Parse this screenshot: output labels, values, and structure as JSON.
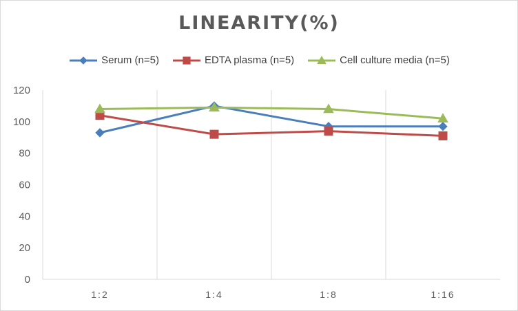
{
  "chart_data": {
    "type": "line",
    "title": "LINEARITY(%)",
    "categories": [
      "1:2",
      "1:4",
      "1:8",
      "1:16"
    ],
    "ylim": [
      0,
      120
    ],
    "yticks": [
      0,
      20,
      40,
      60,
      80,
      100,
      120
    ],
    "grid": "vertical",
    "legend_position": "top",
    "series": [
      {
        "name": "Serum (n=5)",
        "values": [
          93,
          110,
          97,
          97
        ],
        "color": "#4a7ebb",
        "marker": "diamond"
      },
      {
        "name": "EDTA plasma (n=5)",
        "values": [
          104,
          92,
          94,
          91
        ],
        "color": "#be4b48",
        "marker": "square"
      },
      {
        "name": "Cell culture media (n=5)",
        "values": [
          108,
          109,
          108,
          102
        ],
        "color": "#9bbb59",
        "marker": "triangle"
      }
    ]
  }
}
